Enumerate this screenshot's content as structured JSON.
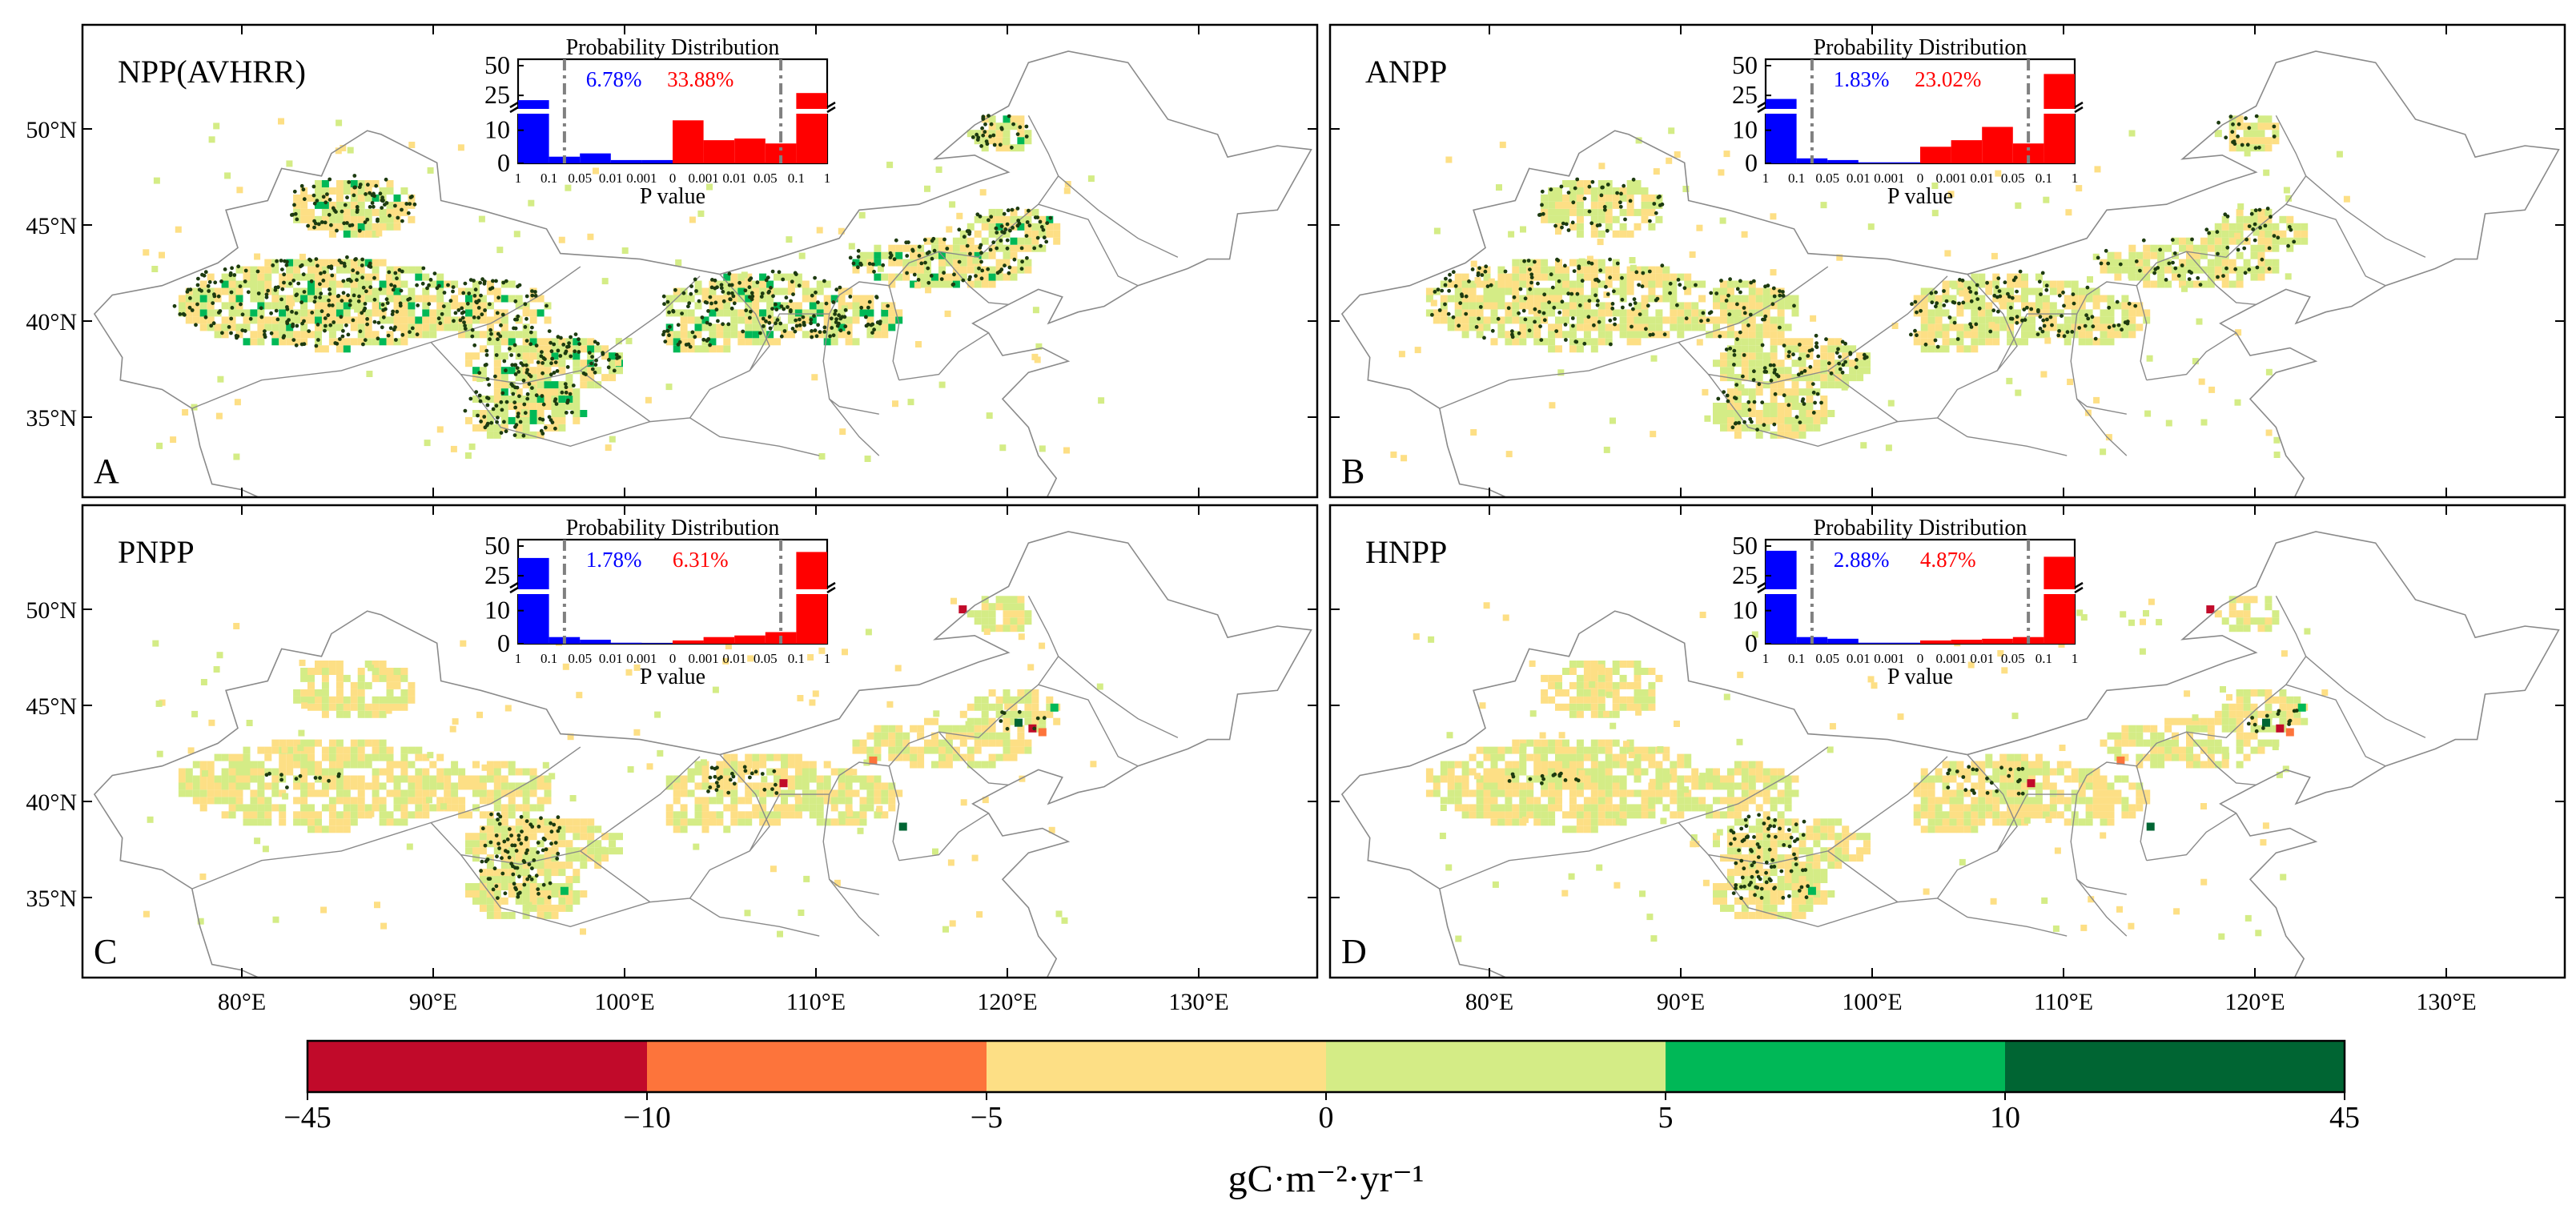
{
  "figure": {
    "panels": [
      {
        "id": "A",
        "title": "NPP(AVHRR)",
        "letter": "A",
        "neg_pct": "6.78%",
        "pos_pct": "33.88%",
        "neg_bars": [
          21,
          2,
          3,
          1,
          1
        ],
        "pos_bars": [
          13,
          7,
          7.5,
          6,
          27
        ],
        "density": "high"
      },
      {
        "id": "B",
        "title": "ANPP",
        "letter": "B",
        "neg_pct": "1.83%",
        "pos_pct": "23.02%",
        "neg_bars": [
          22,
          1.5,
          1,
          0.3,
          0.3
        ],
        "pos_bars": [
          5,
          7,
          11,
          6,
          43
        ],
        "density": "medium"
      },
      {
        "id": "C",
        "title": "PNPP",
        "letter": "C",
        "neg_pct": "1.78%",
        "pos_pct": "6.31%",
        "neg_bars": [
          40,
          2,
          1.2,
          0.3,
          0.2
        ],
        "pos_bars": [
          1,
          2,
          2.5,
          3.5,
          45
        ],
        "density": "low"
      },
      {
        "id": "D",
        "title": "HNPP",
        "letter": "D",
        "neg_pct": "2.88%",
        "pos_pct": "4.87%",
        "neg_bars": [
          46,
          2,
          1.5,
          0.3,
          0.3
        ],
        "pos_bars": [
          1,
          1.2,
          1.5,
          2,
          41
        ],
        "density": "low"
      }
    ],
    "inset": {
      "title": "Probability Distribution",
      "xlabel": "P value",
      "yticks": [
        "50",
        "25",
        "10",
        "0"
      ],
      "xticks": [
        "1",
        "0.1",
        "0.05",
        "0.01",
        "0.001",
        "0",
        "0.001",
        "0.01",
        "0.05",
        "0.1",
        "1"
      ]
    },
    "lat_labels": [
      "50°N",
      "45°N",
      "40°N",
      "35°N"
    ],
    "lon_labels": [
      "80°E",
      "90°E",
      "100°E",
      "110°E",
      "120°E",
      "130°E"
    ],
    "colorbar": {
      "ticks": [
        "−45",
        "−10",
        "−5",
        "0",
        "5",
        "10",
        "45"
      ],
      "colors": [
        "#c10a2a",
        "#fd743b",
        "#fddf85",
        "#d4ec86",
        "#00b857",
        "#006533"
      ],
      "label": "gC·m⁻²·yr⁻¹"
    },
    "colors": {
      "neg": "#0000ff",
      "pos": "#ff0000",
      "dash": "#808080"
    }
  },
  "chart_data": [
    {
      "type": "bar",
      "title": "Probability Distribution",
      "panel": "A",
      "xlabel": "P value",
      "ylabel": "",
      "categories": [
        "1-0.1",
        "0.1-0.05",
        "0.05-0.01",
        "0.01-0.001",
        "0.001-0",
        "0-0.001",
        "0.001-0.01",
        "0.01-0.05",
        "0.05-0.1",
        "0.1-1"
      ],
      "values": [
        21,
        2,
        3,
        1,
        1,
        13,
        7,
        7.5,
        6,
        27
      ],
      "annotations": [
        "6.78%",
        "33.88%"
      ],
      "ylim": [
        0,
        50
      ]
    },
    {
      "type": "bar",
      "title": "Probability Distribution",
      "panel": "B",
      "xlabel": "P value",
      "ylabel": "",
      "categories": [
        "1-0.1",
        "0.1-0.05",
        "0.05-0.01",
        "0.01-0.001",
        "0.001-0",
        "0-0.001",
        "0.001-0.01",
        "0.01-0.05",
        "0.05-0.1",
        "0.1-1"
      ],
      "values": [
        22,
        1.5,
        1,
        0.3,
        0.3,
        5,
        7,
        11,
        6,
        43
      ],
      "annotations": [
        "1.83%",
        "23.02%"
      ],
      "ylim": [
        0,
        50
      ]
    },
    {
      "type": "bar",
      "title": "Probability Distribution",
      "panel": "C",
      "xlabel": "P value",
      "ylabel": "",
      "categories": [
        "1-0.1",
        "0.1-0.05",
        "0.05-0.01",
        "0.01-0.001",
        "0.001-0",
        "0-0.001",
        "0.001-0.01",
        "0.01-0.05",
        "0.05-0.1",
        "0.1-1"
      ],
      "values": [
        40,
        2,
        1.2,
        0.3,
        0.2,
        1,
        2,
        2.5,
        3.5,
        45
      ],
      "annotations": [
        "1.78%",
        "6.31%"
      ],
      "ylim": [
        0,
        50
      ]
    },
    {
      "type": "bar",
      "title": "Probability Distribution",
      "panel": "D",
      "xlabel": "P value",
      "ylabel": "",
      "categories": [
        "1-0.1",
        "0.1-0.05",
        "0.05-0.01",
        "0.01-0.001",
        "0.001-0",
        "0-0.001",
        "0.001-0.01",
        "0.01-0.05",
        "0.05-0.1",
        "0.1-1"
      ],
      "values": [
        46,
        2,
        1.5,
        0.3,
        0.3,
        1,
        1.2,
        1.5,
        2,
        41
      ],
      "annotations": [
        "2.88%",
        "4.87%"
      ],
      "ylim": [
        0,
        50
      ]
    }
  ]
}
